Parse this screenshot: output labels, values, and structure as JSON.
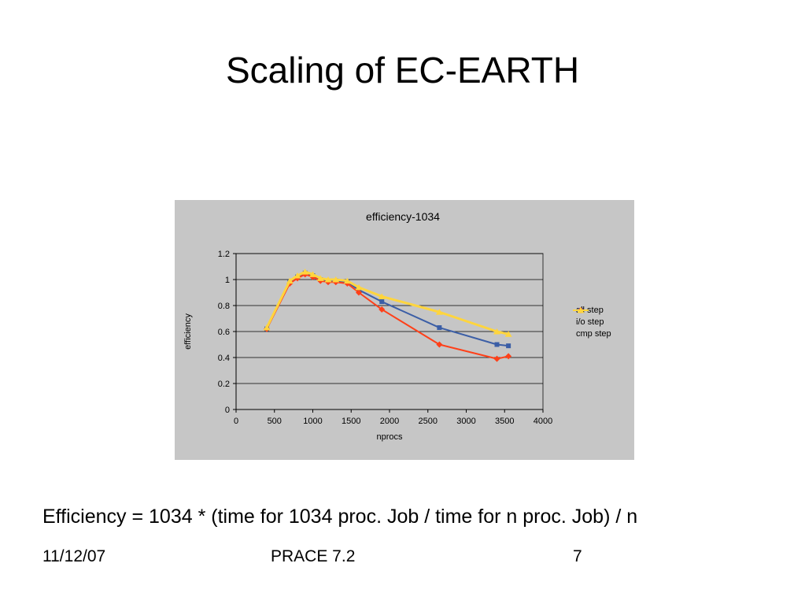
{
  "slide": {
    "title": "Scaling of EC-EARTH",
    "formula": "Efficiency = 1034 * (time for 1034 proc. Job / time for n proc. Job) / n",
    "footer": {
      "date": "11/12/07",
      "label": "PRACE 7.2",
      "page_number": "7"
    }
  },
  "chart_data": {
    "type": "line",
    "title": "efficiency-1034",
    "xlabel": "nprocs",
    "ylabel": "efficiency",
    "xlim": [
      0,
      4000
    ],
    "ylim": [
      0,
      1.2
    ],
    "xticks": [
      0,
      500,
      1000,
      1500,
      2000,
      2500,
      3000,
      3500,
      4000
    ],
    "yticks": [
      0,
      0.2,
      0.4,
      0.6,
      0.8,
      1,
      1.2
    ],
    "grid": "horizontal",
    "legend_position": "right",
    "background": "#c6c6c6",
    "x": [
      400,
      700,
      800,
      900,
      1000,
      1100,
      1200,
      1300,
      1450,
      1600,
      1900,
      2650,
      3400,
      3550
    ],
    "series": [
      {
        "name": "all step",
        "color": "#3b5ea6",
        "marker": "square",
        "values": [
          0.62,
          0.98,
          1.02,
          1.05,
          1.03,
          1.0,
          0.99,
          0.99,
          0.98,
          0.92,
          0.83,
          0.63,
          0.5,
          0.49
        ]
      },
      {
        "name": "i/o step",
        "color": "#ff4019",
        "marker": "diamond",
        "values": [
          0.62,
          0.97,
          1.01,
          1.04,
          1.02,
          0.99,
          0.98,
          0.98,
          0.97,
          0.9,
          0.77,
          0.5,
          0.39,
          0.41
        ]
      },
      {
        "name": "cmp step",
        "color": "#ffd53e",
        "marker": "triangle",
        "values": [
          0.63,
          0.99,
          1.03,
          1.06,
          1.04,
          1.01,
          1.0,
          1.0,
          0.99,
          0.94,
          0.87,
          0.75,
          0.6,
          0.58
        ]
      }
    ]
  }
}
